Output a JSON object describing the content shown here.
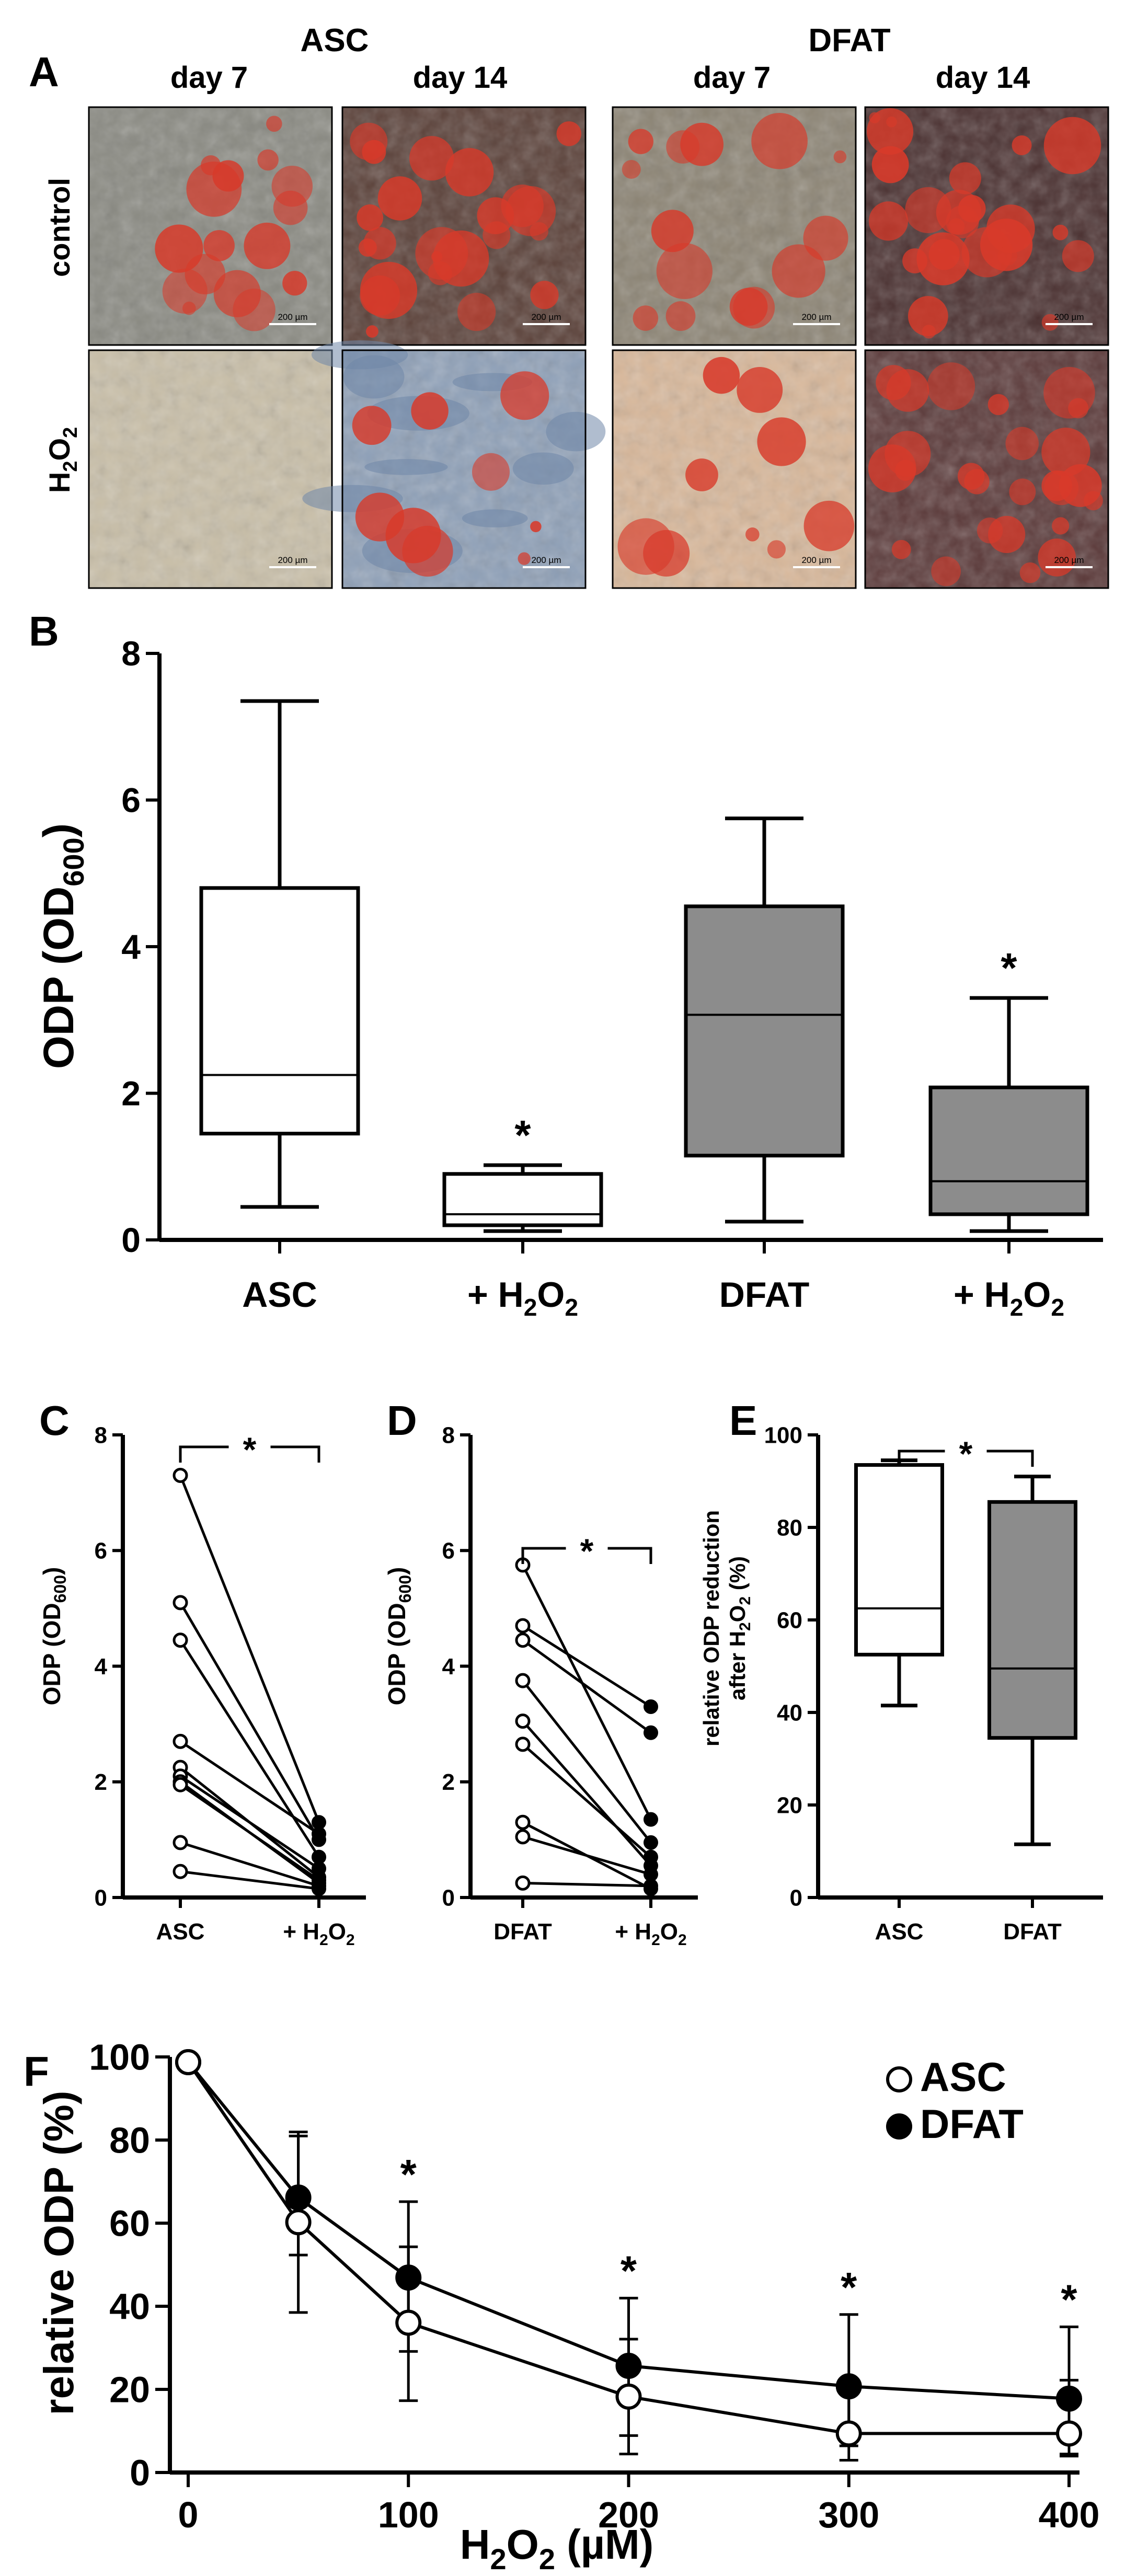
{
  "colors": {
    "white_box": "#ffffff",
    "gray_box": "#8c8c8c",
    "ink": "#000000",
    "stain_red": "#d83a2a",
    "stain_blue": "#6f86a8"
  },
  "panel_labels": {
    "a": "A",
    "b": "B",
    "c": "C",
    "d": "D",
    "e": "E",
    "f": "F"
  },
  "micrographs": {
    "groups": [
      "ASC",
      "DFAT"
    ],
    "columns": [
      "day 7",
      "day 14",
      "day 7",
      "day 14"
    ],
    "rows": {
      "control": "control",
      "h2o2_main": "H",
      "h2o2_sub": "2",
      "h2o2_o": "O",
      "h2o2_sub2": "2"
    },
    "scale_bar": "200 µm"
  },
  "chart_data": [
    {
      "panel": "B",
      "type": "box",
      "categories": [
        {
          "main": "ASC",
          "sub": ""
        },
        {
          "main": "+ H",
          "sub": "2",
          "tail": "O",
          "sub2": "2"
        },
        {
          "main": "DFAT",
          "sub": ""
        },
        {
          "main": "+ H",
          "sub": "2",
          "tail": "O",
          "sub2": "2"
        }
      ],
      "ylabel": {
        "main": "ODP (OD",
        "sub": "600",
        "tail": ")"
      },
      "ylim": [
        0,
        8
      ],
      "yticks": [
        "0",
        "2",
        "4",
        "6",
        "8"
      ],
      "boxes": [
        {
          "min": 0.45,
          "q1": 1.45,
          "median": 2.25,
          "q3": 4.8,
          "max": 7.35,
          "color": "#ffffff"
        },
        {
          "min": 0.12,
          "q1": 0.2,
          "median": 0.35,
          "q3": 0.9,
          "max": 1.02,
          "color": "#ffffff"
        },
        {
          "min": 0.25,
          "q1": 1.15,
          "median": 3.07,
          "q3": 4.55,
          "max": 5.75,
          "color": "#8c8c8c"
        },
        {
          "min": 0.12,
          "q1": 0.35,
          "median": 0.8,
          "q3": 2.08,
          "max": 3.3,
          "color": "#8c8c8c"
        }
      ],
      "significance": [
        "",
        "*",
        "",
        "*"
      ]
    },
    {
      "panel": "C",
      "type": "paired_line",
      "categories": [
        {
          "main": "ASC",
          "sub": ""
        },
        {
          "main": "+ H",
          "sub": "2",
          "tail": "O",
          "sub2": "2"
        }
      ],
      "ylabel": {
        "main": "ODP (OD",
        "sub": "600",
        "tail": ")"
      },
      "ylim": [
        0,
        8
      ],
      "yticks": [
        "0",
        "2",
        "4",
        "6",
        "8"
      ],
      "pairs": [
        [
          7.3,
          1.3
        ],
        [
          5.1,
          1.0
        ],
        [
          4.45,
          0.7
        ],
        [
          2.7,
          1.1
        ],
        [
          2.25,
          0.35
        ],
        [
          2.1,
          0.5
        ],
        [
          2.0,
          0.25
        ],
        [
          1.95,
          0.3
        ],
        [
          0.95,
          0.2
        ],
        [
          0.45,
          0.15
        ]
      ],
      "significance": "*"
    },
    {
      "panel": "D",
      "type": "paired_line",
      "categories": [
        {
          "main": "DFAT",
          "sub": ""
        },
        {
          "main": "+ H",
          "sub": "2",
          "tail": "O",
          "sub2": "2"
        }
      ],
      "ylabel": {
        "main": "ODP (OD",
        "sub": "600",
        "tail": ")"
      },
      "ylim": [
        0,
        8
      ],
      "yticks": [
        "0",
        "2",
        "4",
        "6",
        "8"
      ],
      "pairs": [
        [
          5.75,
          1.35
        ],
        [
          4.7,
          3.3
        ],
        [
          4.45,
          2.85
        ],
        [
          3.75,
          0.95
        ],
        [
          3.05,
          0.55
        ],
        [
          2.65,
          0.7
        ],
        [
          1.3,
          0.15
        ],
        [
          1.05,
          0.4
        ],
        [
          0.25,
          0.2
        ]
      ],
      "significance": "*"
    },
    {
      "panel": "E",
      "type": "box",
      "categories": [
        {
          "main": "ASC",
          "sub": ""
        },
        {
          "main": "DFAT",
          "sub": ""
        }
      ],
      "ylabel": {
        "line1": "relative ODP reduction",
        "line2_main": "after H",
        "line2_sub": "2",
        "line2_o": "O",
        "line2_sub2": "2",
        "line2_tail": " (%)"
      },
      "ylim": [
        0,
        100
      ],
      "yticks": [
        "0",
        "20",
        "40",
        "60",
        "80",
        "100"
      ],
      "boxes": [
        {
          "min": 41.5,
          "q1": 52.5,
          "median": 62.5,
          "q3": 93.5,
          "max": 94.5,
          "color": "#ffffff"
        },
        {
          "min": 11.5,
          "q1": 34.5,
          "median": 49.5,
          "q3": 85.5,
          "max": 91,
          "color": "#8c8c8c"
        }
      ],
      "significance": "*"
    },
    {
      "panel": "F",
      "type": "line",
      "x": [
        0,
        50,
        100,
        200,
        300,
        400
      ],
      "xlabel": {
        "main": "H",
        "sub": "2",
        "o": "O",
        "sub2": "2",
        "tail": " (µM)"
      },
      "ylabel": "relative ODP (%)",
      "xlim": [
        0,
        400
      ],
      "ylim": [
        0,
        100
      ],
      "xticks": [
        "0",
        "100",
        "200",
        "300",
        "400"
      ],
      "yticks": [
        "0",
        "20",
        "40",
        "60",
        "80",
        "100"
      ],
      "series": [
        {
          "name": "ASC",
          "marker": "open",
          "values": [
            100,
            61,
            36.5,
            18.5,
            9.5,
            9.5
          ],
          "err_up": [
            0,
            21,
            18.5,
            14,
            13,
            13
          ],
          "err_down": [
            0,
            22,
            19,
            14,
            6.5,
            5
          ]
        },
        {
          "name": "DFAT",
          "marker": "filled",
          "values": [
            100,
            67,
            47.5,
            26,
            21,
            18
          ],
          "err_up": [
            0,
            16,
            18.5,
            16.5,
            17.5,
            17.5
          ],
          "err_down": [
            0,
            14,
            18,
            17,
            14.5,
            14
          ]
        }
      ],
      "significance": [
        "",
        "",
        "*",
        "*",
        "*",
        "*"
      ],
      "legend_position": "top-right"
    }
  ]
}
